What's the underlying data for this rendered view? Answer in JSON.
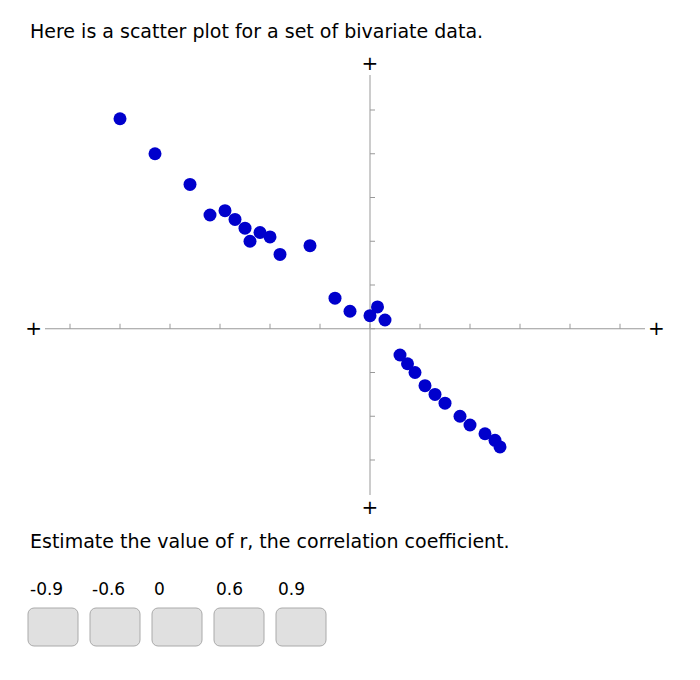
{
  "chart_data": {
    "type": "scatter",
    "title": "Here is a scatter plot for a set of bivariate data.",
    "subtitle": "Estimate the value of r, the correlation coefficient.",
    "x": [
      -5.0,
      -4.3,
      -3.6,
      -3.2,
      -2.9,
      -2.7,
      -2.5,
      -2.4,
      -2.2,
      -2.0,
      -1.8,
      -1.2,
      -0.7,
      -0.4,
      0.0,
      0.15,
      0.3,
      0.6,
      0.75,
      0.9,
      1.1,
      1.3,
      1.5,
      1.8,
      2.0,
      2.3,
      2.5,
      2.6
    ],
    "values": [
      4.8,
      4.0,
      3.3,
      2.6,
      2.7,
      2.5,
      2.3,
      2.0,
      2.2,
      2.1,
      1.7,
      1.9,
      0.7,
      0.4,
      0.3,
      0.5,
      0.2,
      -0.6,
      -0.8,
      -1.0,
      -1.3,
      -1.5,
      -1.7,
      -2.0,
      -2.2,
      -2.4,
      -2.55,
      -2.7
    ],
    "color": "#0000cc",
    "xlim": [
      -6.5,
      5.5
    ],
    "ylim": [
      -3.8,
      5.8
    ],
    "xticks": [
      -6,
      -5,
      -4,
      -3,
      -2,
      -1,
      0,
      1,
      2,
      3,
      4,
      5
    ],
    "yticks": [
      -3,
      -2,
      -1,
      0,
      1,
      2,
      3,
      4,
      5
    ],
    "tick_labels": false,
    "grid": false,
    "annotations": [
      "+",
      "+",
      "+",
      "+"
    ],
    "choice_labels": [
      "-0.9",
      "-0.6",
      "0",
      "0.6",
      "0.9"
    ]
  }
}
